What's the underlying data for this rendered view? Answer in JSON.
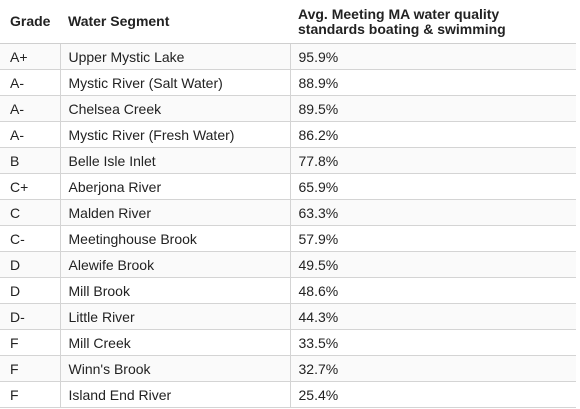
{
  "table": {
    "headers": {
      "grade": "Grade",
      "segment": "Water Segment",
      "avg_line1": "Avg. Meeting MA water quality",
      "avg_line2": "standards boating & swimming"
    },
    "rows": [
      {
        "grade": "A+",
        "segment": "Upper Mystic Lake",
        "avg": "95.9%"
      },
      {
        "grade": "A-",
        "segment": "Mystic River (Salt Water)",
        "avg": "88.9%"
      },
      {
        "grade": "A-",
        "segment": "Chelsea Creek",
        "avg": "89.5%"
      },
      {
        "grade": "A-",
        "segment": "Mystic River (Fresh Water)",
        "avg": "86.2%"
      },
      {
        "grade": "B",
        "segment": "Belle Isle Inlet",
        "avg": "77.8%"
      },
      {
        "grade": "C+",
        "segment": "Aberjona River",
        "avg": "65.9%"
      },
      {
        "grade": "C",
        "segment": "Malden River",
        "avg": "63.3%"
      },
      {
        "grade": "C-",
        "segment": "Meetinghouse Brook",
        "avg": "57.9%"
      },
      {
        "grade": "D",
        "segment": "Alewife Brook",
        "avg": "49.5%"
      },
      {
        "grade": "D",
        "segment": "Mill Brook",
        "avg": "48.6%"
      },
      {
        "grade": "D-",
        "segment": "Little River",
        "avg": "44.3%"
      },
      {
        "grade": "F",
        "segment": "Mill Creek",
        "avg": "33.5%"
      },
      {
        "grade": "F",
        "segment": "Winn's Brook",
        "avg": "32.7%"
      },
      {
        "grade": "F",
        "segment": "Island End River",
        "avg": "25.4%"
      }
    ]
  }
}
